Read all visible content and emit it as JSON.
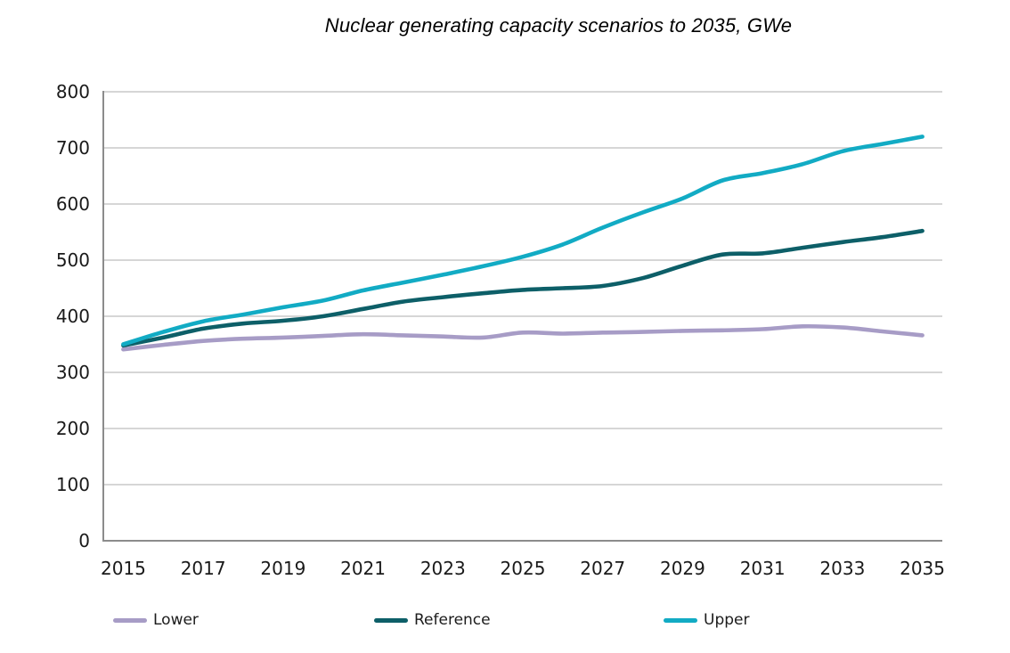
{
  "title": "Nuclear generating capacity scenarios to 2035, GWe",
  "colors": {
    "background": "#ffffff",
    "gridline": "#d6d6d6",
    "axis": "#8c8c8c",
    "tick_text": "#1a1a1a",
    "lower": "#a79cc6",
    "reference": "#0d5f68",
    "upper": "#12abc4"
  },
  "legend": {
    "position": "bottom",
    "items": [
      {
        "label": "Lower"
      },
      {
        "label": "Reference"
      },
      {
        "label": "Upper"
      }
    ]
  },
  "chart_data": {
    "type": "line",
    "title": "Nuclear generating capacity scenarios to 2035, GWe",
    "unit": "GWe",
    "xlabel": "",
    "ylabel": "",
    "grid": true,
    "smoothed_lines": true,
    "legend_position": "bottom",
    "ylim": [
      0,
      800
    ],
    "y_ticks": [
      0,
      100,
      200,
      300,
      400,
      500,
      600,
      700,
      800
    ],
    "x_tick_step": 2,
    "x": [
      2015,
      2016,
      2017,
      2018,
      2019,
      2020,
      2021,
      2022,
      2023,
      2024,
      2025,
      2026,
      2027,
      2028,
      2029,
      2030,
      2031,
      2032,
      2033,
      2034,
      2035
    ],
    "series": [
      {
        "name": "Lower",
        "color": "#a79cc6",
        "values": [
          341,
          349,
          356,
          360,
          362,
          365,
          368,
          366,
          364,
          362,
          371,
          369,
          371,
          372,
          374,
          375,
          377,
          382,
          380,
          373,
          366
        ]
      },
      {
        "name": "Reference",
        "color": "#0d5f68",
        "values": [
          348,
          362,
          378,
          387,
          392,
          400,
          413,
          426,
          434,
          441,
          447,
          450,
          454,
          468,
          490,
          510,
          512,
          522,
          532,
          541,
          552
        ]
      },
      {
        "name": "Upper",
        "color": "#12abc4",
        "values": [
          350,
          372,
          391,
          403,
          416,
          428,
          446,
          460,
          474,
          489,
          506,
          528,
          558,
          585,
          610,
          642,
          655,
          671,
          694,
          707,
          720
        ]
      }
    ]
  }
}
